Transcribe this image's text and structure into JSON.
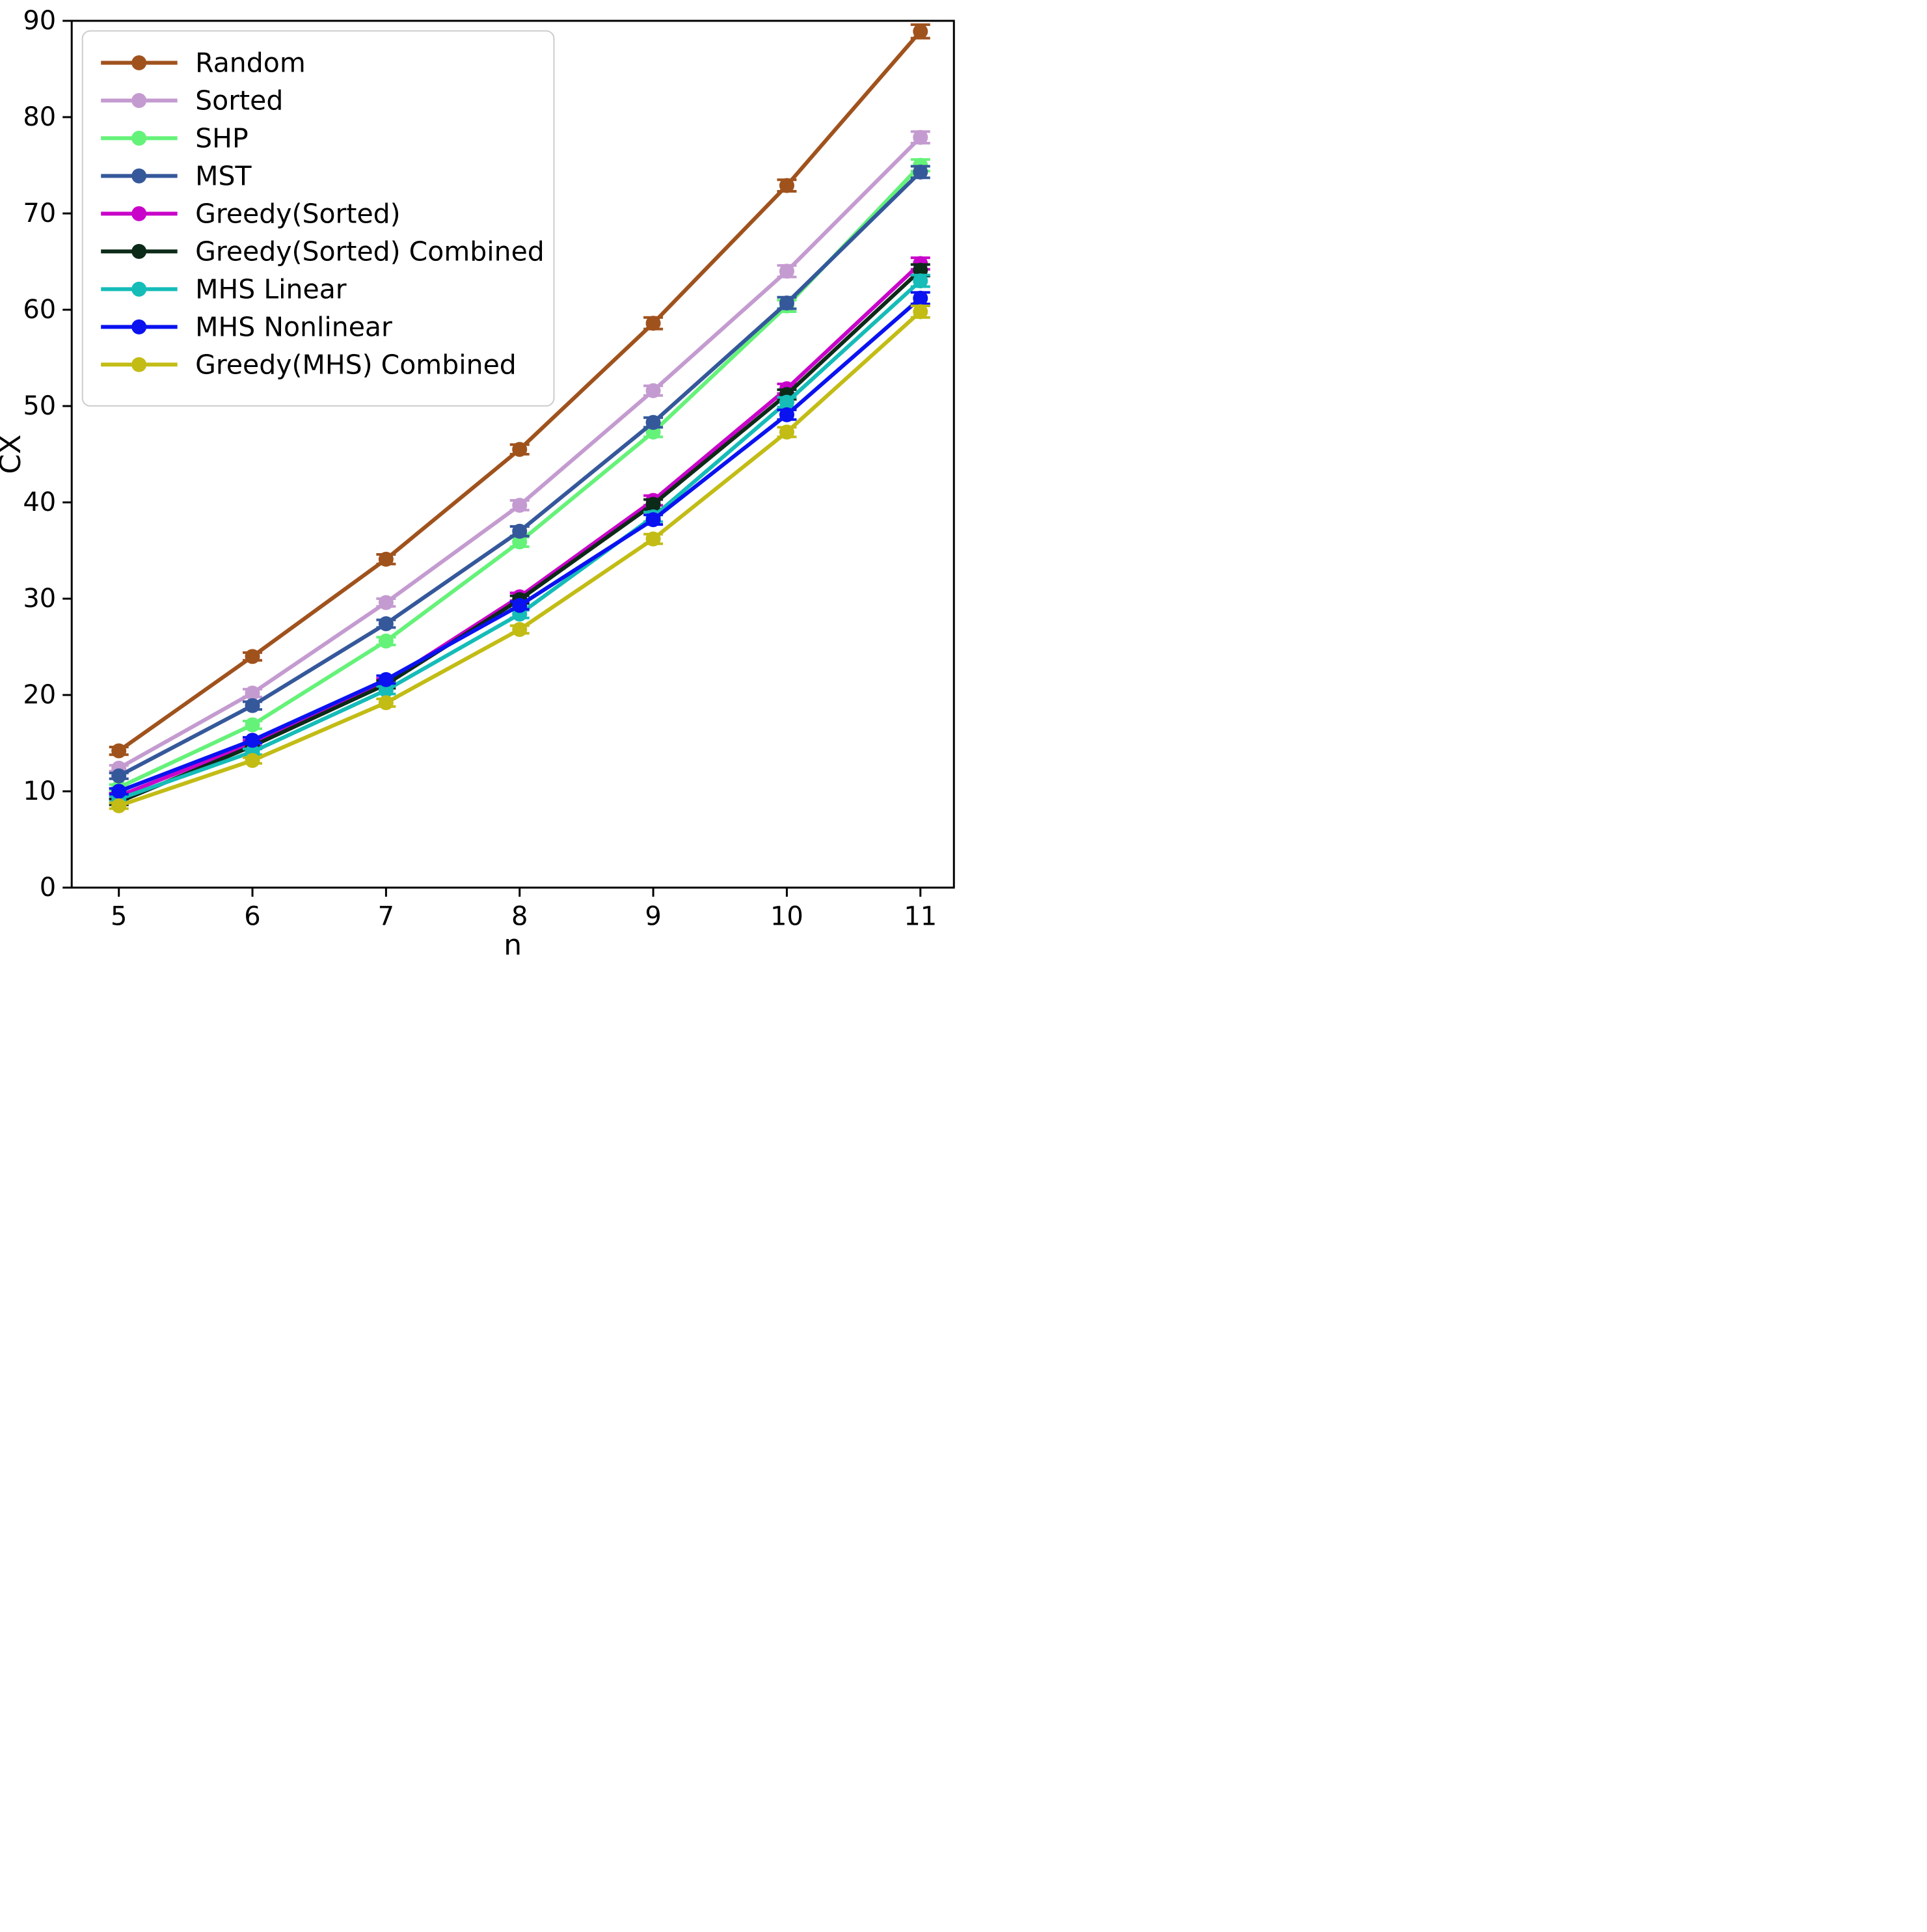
{
  "chart_data": {
    "type": "line",
    "x": [
      5,
      6,
      7,
      8,
      9,
      10,
      11
    ],
    "xlabel": "n",
    "ylabel": "CX",
    "xticks": [
      5,
      6,
      7,
      8,
      9,
      10,
      11
    ],
    "yticks": [
      0,
      10,
      20,
      30,
      40,
      50,
      60,
      70,
      80,
      90
    ],
    "ylim": [
      0,
      90
    ],
    "grid": false,
    "legend_position": "upper left",
    "marker": "circle",
    "error_bars": true,
    "axis_color": "#000000",
    "legend_border_color": "#cccccc",
    "series": [
      {
        "name": "Random",
        "color": "#A0521D",
        "values": [
          14.2,
          24.0,
          34.1,
          45.5,
          58.6,
          72.9,
          88.9
        ],
        "err": [
          0.4,
          0.4,
          0.5,
          0.5,
          0.6,
          0.6,
          0.7
        ]
      },
      {
        "name": "Sorted",
        "color": "#C49BD0",
        "values": [
          12.4,
          20.2,
          29.6,
          39.7,
          51.6,
          64.0,
          77.9
        ],
        "err": [
          0.3,
          0.4,
          0.4,
          0.5,
          0.5,
          0.6,
          0.6
        ]
      },
      {
        "name": "SHP",
        "color": "#65F279",
        "values": [
          10.4,
          16.9,
          25.6,
          35.9,
          47.3,
          60.4,
          75.0
        ],
        "err": [
          0.3,
          0.4,
          0.4,
          0.5,
          0.5,
          0.6,
          0.6
        ]
      },
      {
        "name": "MST",
        "color": "#35589B",
        "values": [
          11.6,
          18.9,
          27.4,
          37.0,
          48.3,
          60.7,
          74.3
        ],
        "err": [
          0.3,
          0.4,
          0.4,
          0.5,
          0.5,
          0.6,
          0.6
        ]
      },
      {
        "name": "Greedy(Sorted)",
        "color": "#C903C9",
        "values": [
          9.5,
          15.0,
          21.3,
          30.2,
          40.2,
          51.8,
          64.8
        ],
        "err": [
          0.3,
          0.3,
          0.4,
          0.4,
          0.5,
          0.5,
          0.6
        ]
      },
      {
        "name": "Greedy(Sorted) Combined",
        "color": "#0C2A18",
        "values": [
          8.9,
          14.7,
          21.1,
          29.9,
          39.8,
          51.2,
          64.1
        ],
        "err": [
          0.3,
          0.3,
          0.4,
          0.4,
          0.5,
          0.5,
          0.6
        ]
      },
      {
        "name": "MHS Linear",
        "color": "#15BCB8",
        "values": [
          9.2,
          14.1,
          20.5,
          28.4,
          38.5,
          50.4,
          63.0
        ],
        "err": [
          0.3,
          0.3,
          0.4,
          0.4,
          0.5,
          0.5,
          0.6
        ]
      },
      {
        "name": "MHS Nonlinear",
        "color": "#0A12F0",
        "values": [
          10.0,
          15.3,
          21.6,
          29.3,
          38.2,
          49.1,
          61.2
        ],
        "err": [
          0.3,
          0.3,
          0.4,
          0.4,
          0.5,
          0.5,
          0.6
        ]
      },
      {
        "name": "Greedy(MHS) Combined",
        "color": "#C2BC15",
        "values": [
          8.5,
          13.2,
          19.2,
          26.8,
          36.2,
          47.3,
          59.8
        ],
        "err": [
          0.3,
          0.3,
          0.4,
          0.4,
          0.5,
          0.5,
          0.6
        ]
      }
    ]
  }
}
